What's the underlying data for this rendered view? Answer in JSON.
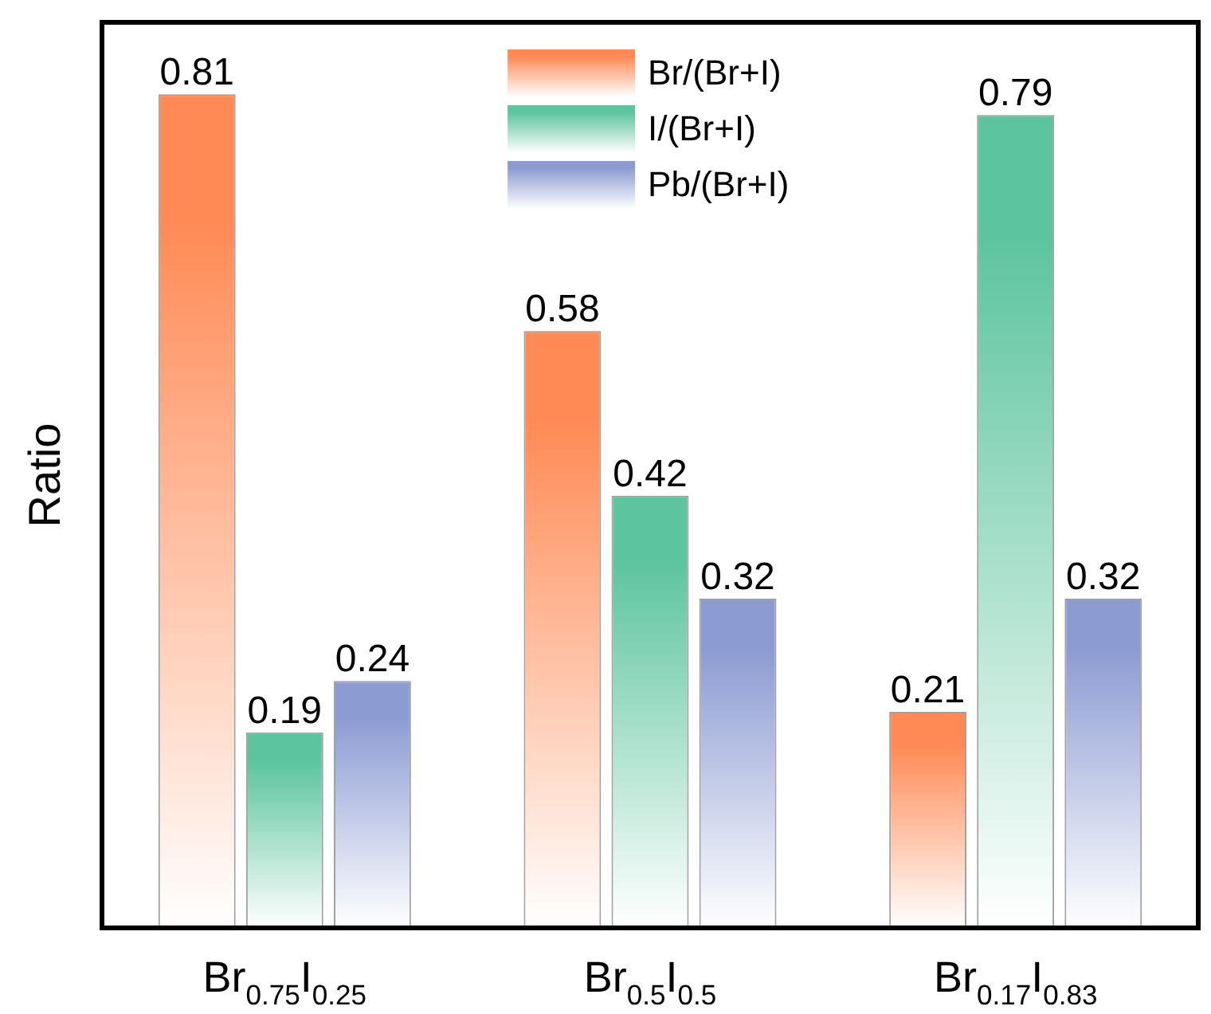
{
  "chart_data": {
    "type": "bar",
    "ylabel": "Ratio",
    "categories": [
      "Br$_{0.75}$I$_{0.25}$",
      "Br$_{0.5}$I$_{0.5}$",
      "Br$_{0.17}$I$_{0.83}$"
    ],
    "series": [
      {
        "name": "Br/(Br+I)",
        "color": "#ff8a55",
        "values": [
          0.81,
          0.58,
          0.21
        ]
      },
      {
        "name": "I/(Br+I)",
        "color": "#5cc49e",
        "values": [
          0.19,
          0.42,
          0.79
        ]
      },
      {
        "name": "Pb/(Br+I)",
        "color": "#8c9bd2",
        "values": [
          0.24,
          0.32,
          0.32
        ]
      }
    ],
    "ylim": [
      0,
      0.88
    ],
    "data_labels": true,
    "legend": "top",
    "grid": false,
    "tick_labels": "x"
  }
}
